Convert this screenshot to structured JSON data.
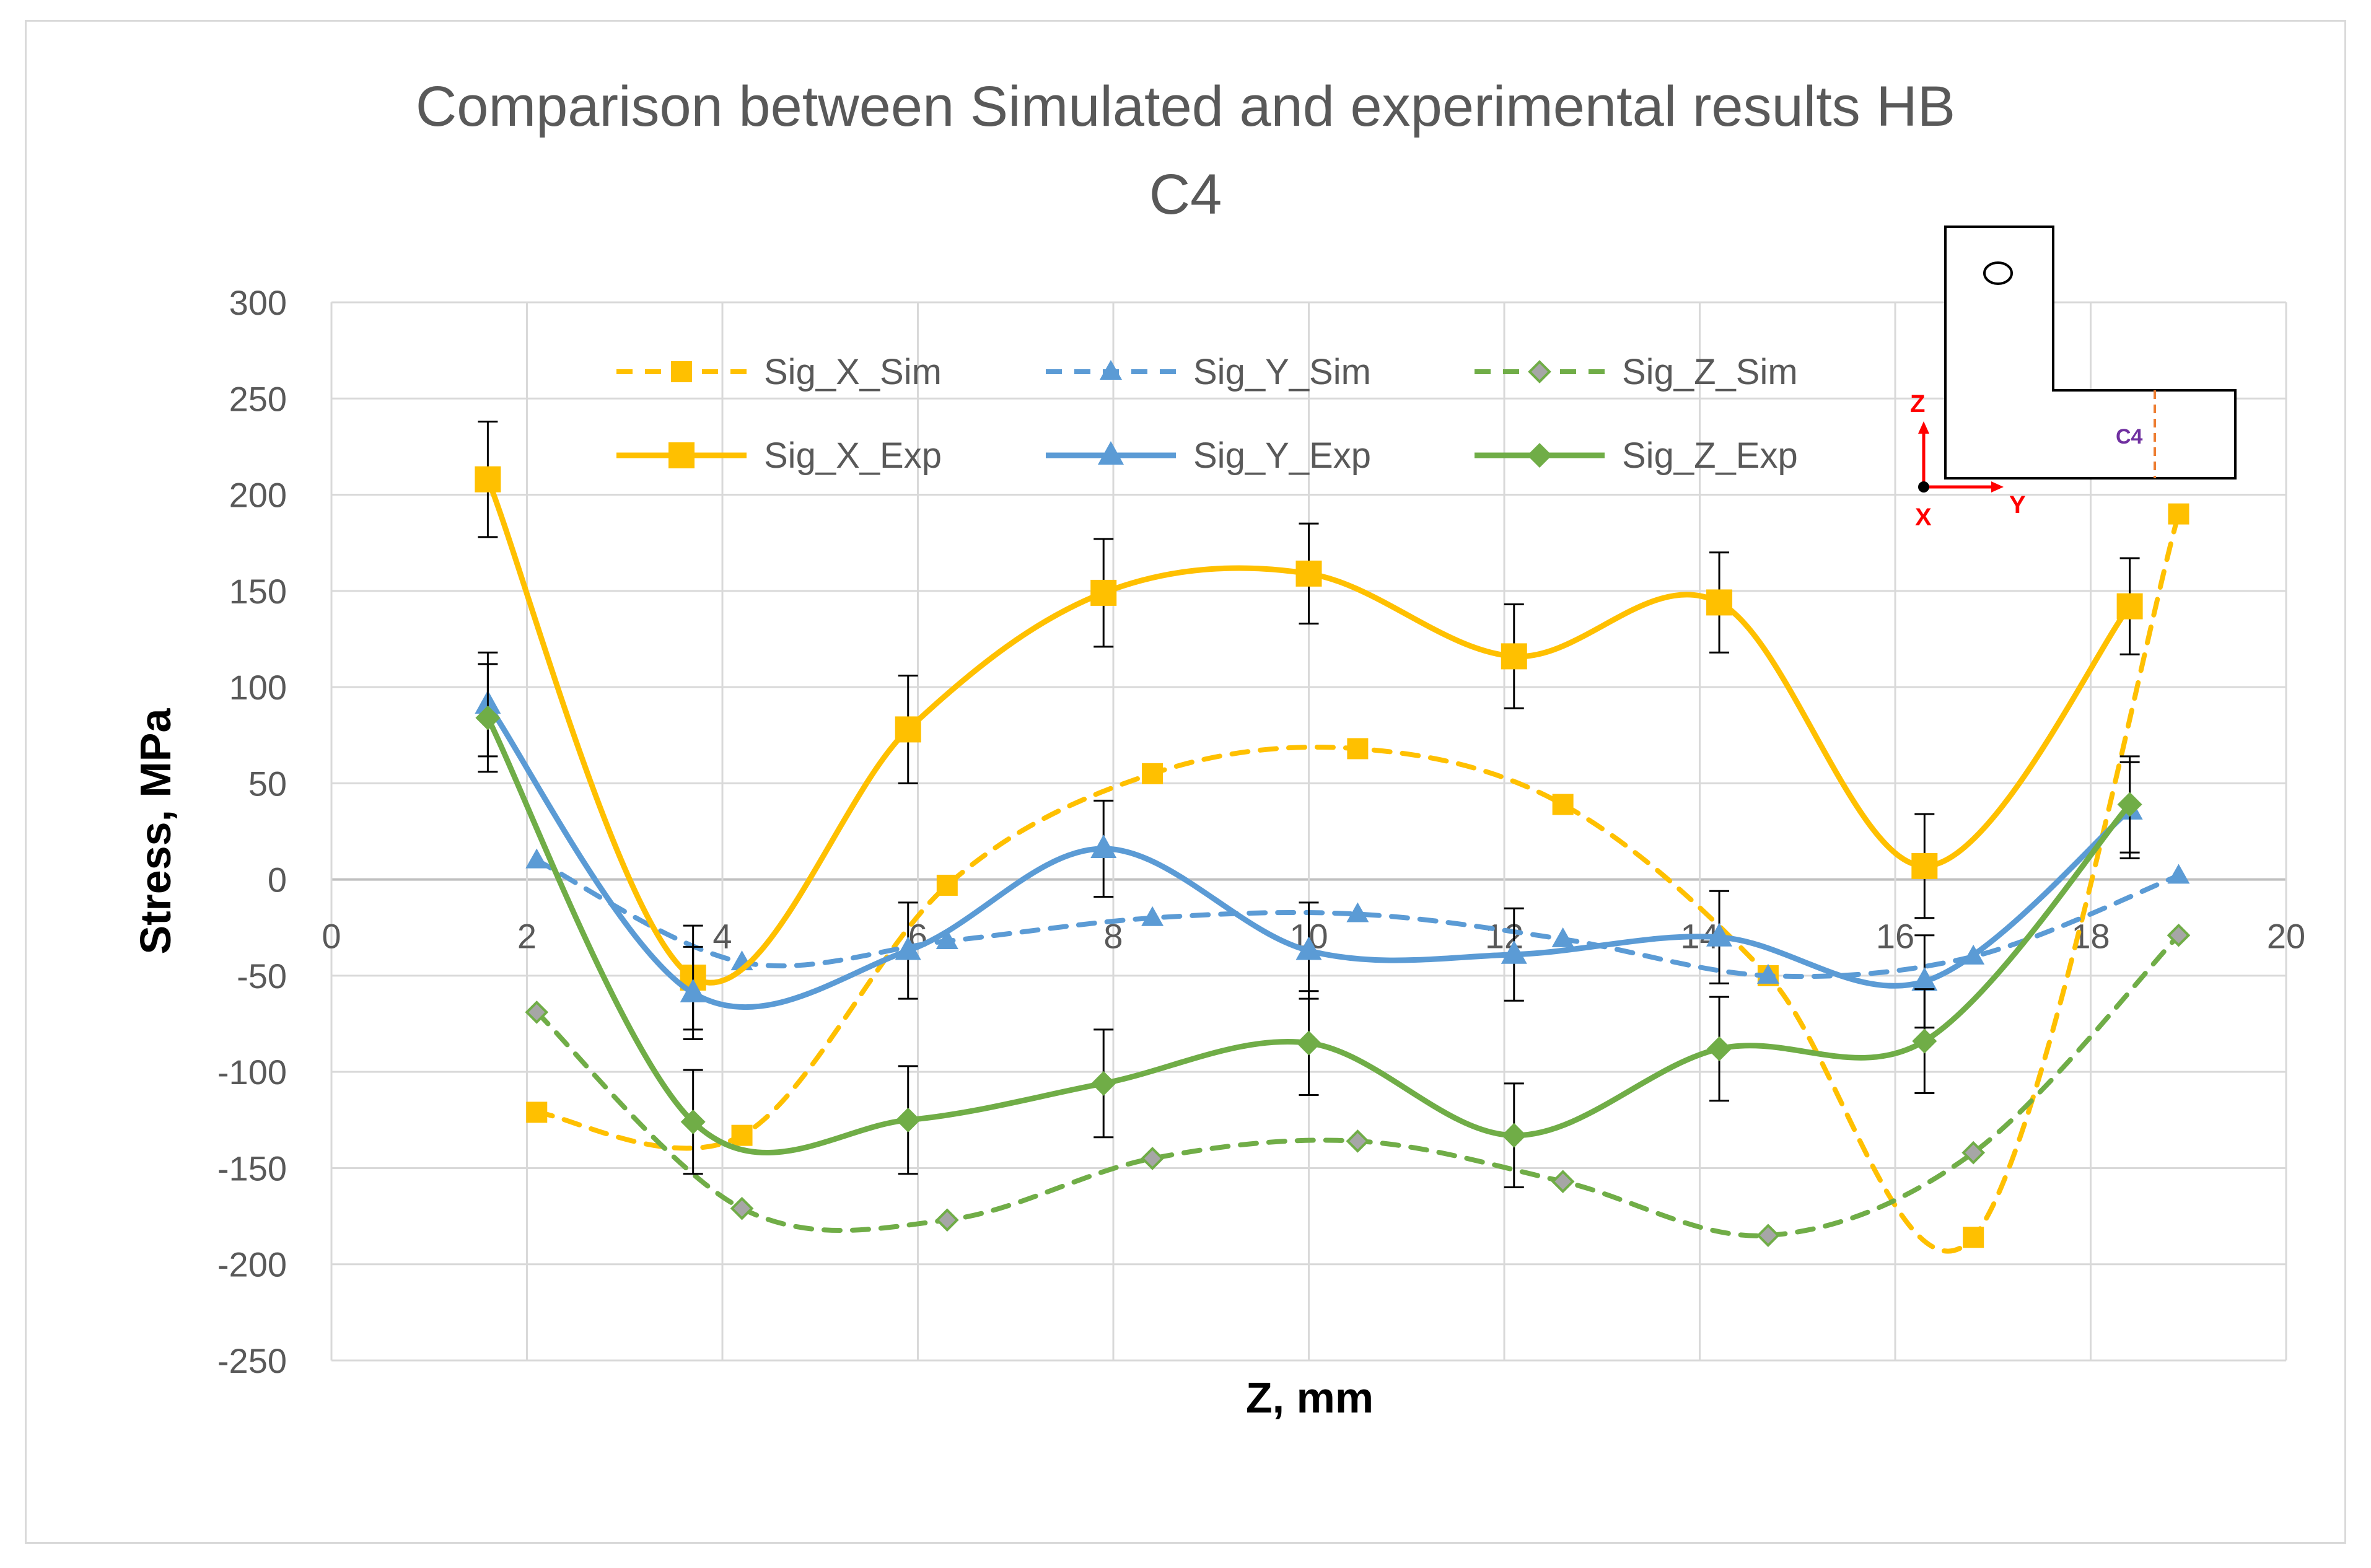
{
  "chart_data": {
    "type": "line",
    "title_lines": [
      "Comparison between Simulated and experimental results HB",
      "C4"
    ],
    "xlabel": "Z, mm",
    "ylabel": "Stress, MPa",
    "xlim": [
      0,
      20
    ],
    "ylim": [
      -250,
      300
    ],
    "x_ticks": [
      0,
      2,
      4,
      6,
      8,
      10,
      12,
      14,
      16,
      18,
      20
    ],
    "y_ticks": [
      300,
      250,
      200,
      150,
      100,
      50,
      0,
      -50,
      -100,
      -150,
      -200,
      -250
    ],
    "grid": true,
    "legend_position": "top",
    "series": [
      {
        "name": "Sig_X_Sim",
        "color": "#FFC000",
        "dash": true,
        "marker": "square-small",
        "x": [
          2.1,
          4.2,
          6.3,
          8.4,
          10.5,
          12.6,
          14.7,
          16.8,
          18.9
        ],
        "y": [
          -121,
          -133,
          -3,
          55,
          68,
          39,
          -50,
          -186,
          190
        ]
      },
      {
        "name": "Sig_Y_Sim",
        "color": "#5B9BD5",
        "dash": true,
        "marker": "triangle-small",
        "x": [
          2.1,
          4.2,
          6.3,
          8.4,
          10.5,
          12.6,
          14.7,
          16.8,
          18.9
        ],
        "y": [
          10,
          -43,
          -32,
          -20,
          -18,
          -31,
          -50,
          -40,
          2
        ]
      },
      {
        "name": "Sig_Z_Sim",
        "color": "#70AD47",
        "dash": true,
        "marker": "diamond-gray",
        "x": [
          2.1,
          4.2,
          6.3,
          8.4,
          10.5,
          12.6,
          14.7,
          16.8,
          18.9
        ],
        "y": [
          -69,
          -171,
          -177,
          -145,
          -136,
          -157,
          -185,
          -142,
          -29
        ]
      },
      {
        "name": "Sig_X_Exp",
        "color": "#FFC000",
        "dash": false,
        "marker": "square",
        "x": [
          1.6,
          3.7,
          5.9,
          7.9,
          10.0,
          12.1,
          14.2,
          16.3,
          18.4
        ],
        "y": [
          208,
          -51,
          78,
          149,
          159,
          116,
          144,
          7,
          142
        ],
        "err": [
          30,
          27,
          28,
          28,
          26,
          27,
          26,
          27,
          25
        ]
      },
      {
        "name": "Sig_Y_Exp",
        "color": "#5B9BD5",
        "dash": false,
        "marker": "triangle",
        "x": [
          1.6,
          3.7,
          5.9,
          7.9,
          10.0,
          12.1,
          14.2,
          16.3,
          18.4
        ],
        "y": [
          91,
          -59,
          -37,
          16,
          -37,
          -39,
          -30,
          -53,
          36
        ],
        "err": [
          27,
          24,
          25,
          25,
          25,
          24,
          24,
          24,
          25
        ]
      },
      {
        "name": "Sig_Z_Exp",
        "color": "#70AD47",
        "dash": false,
        "marker": "diamond",
        "x": [
          1.6,
          3.7,
          5.9,
          7.9,
          10.0,
          12.1,
          14.2,
          16.3,
          18.4
        ],
        "y": [
          84,
          -126,
          -125,
          -106,
          -85,
          -133,
          -88,
          -84,
          39
        ],
        "err": [
          28,
          27,
          28,
          28,
          27,
          27,
          27,
          27,
          25
        ]
      }
    ],
    "inset": {
      "section_label": "C4",
      "axis_z": "Z",
      "axis_y": "Y",
      "axis_x": "X"
    }
  }
}
